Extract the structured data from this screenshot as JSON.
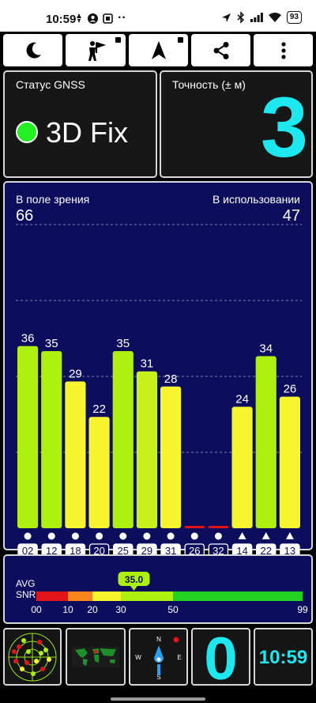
{
  "status_bar": {
    "time": "10:59",
    "dots": "··",
    "battery": "93"
  },
  "toolbar": {
    "items": [
      {
        "name": "night-mode",
        "icon": "moon-icon"
      },
      {
        "name": "flag-man",
        "icon": "flag-man-icon"
      },
      {
        "name": "navigate",
        "icon": "navigation-arrow-icon"
      },
      {
        "name": "share",
        "icon": "share-icon"
      },
      {
        "name": "menu",
        "icon": "more-vertical-icon"
      }
    ]
  },
  "gnss_status": {
    "label": "Статус GNSS",
    "value": "3D Fix",
    "color": "#22f022"
  },
  "accuracy": {
    "label": "Точность (± м)",
    "value": "3"
  },
  "satellites": {
    "in_view_label": "В поле зрения",
    "in_view": "66",
    "in_use_label": "В использовании",
    "in_use": "47"
  },
  "chart_data": {
    "type": "bar",
    "categories": [
      "02",
      "12",
      "18",
      "20",
      "25",
      "29",
      "31",
      "26",
      "32",
      "14",
      "22",
      "13"
    ],
    "values": [
      36,
      35,
      29,
      22,
      35,
      31,
      28,
      0,
      0,
      24,
      34,
      26
    ],
    "value_labels": [
      "36",
      "35",
      "29",
      "22",
      "35",
      "31",
      "28",
      "",
      "",
      "24",
      "34",
      "26"
    ],
    "markers": [
      "circle",
      "circle",
      "circle",
      "circle",
      "circle",
      "circle",
      "circle",
      "circle",
      "circle",
      "triangle",
      "triangle",
      "triangle"
    ],
    "boxed": [
      false,
      false,
      false,
      true,
      false,
      false,
      false,
      true,
      true,
      false,
      false,
      false
    ],
    "colors": [
      "#aef010",
      "#aef010",
      "#f6f530",
      "#f6f530",
      "#aef010",
      "#c8f21e",
      "#f6f530",
      "#e3131a",
      "#e3131a",
      "#f6f530",
      "#aef010",
      "#f6f530"
    ],
    "ylim": [
      0,
      60
    ],
    "grid": true
  },
  "snr": {
    "avg_label": "AVG",
    "snr_label": "SNR",
    "value": "35.0",
    "avg": 35,
    "ticks": [
      "00",
      "10",
      "20",
      "30",
      "50",
      "99"
    ],
    "segments": [
      {
        "from": 0,
        "to": 10,
        "color": "#e3131a"
      },
      {
        "from": 10,
        "to": 20,
        "color": "#f7841d"
      },
      {
        "from": 20,
        "to": 30,
        "color": "#f6f530"
      },
      {
        "from": 30,
        "to": 50,
        "color": "#aef010"
      },
      {
        "from": 50,
        "to": 99,
        "color": "#22d222"
      }
    ]
  },
  "widgets": {
    "radar": "radar-icon",
    "world_map": "world-map-icon",
    "compass": {
      "n": "N",
      "e": "E",
      "s": "S",
      "w": "W"
    },
    "satellites_value": "0",
    "clock": "10:59"
  }
}
